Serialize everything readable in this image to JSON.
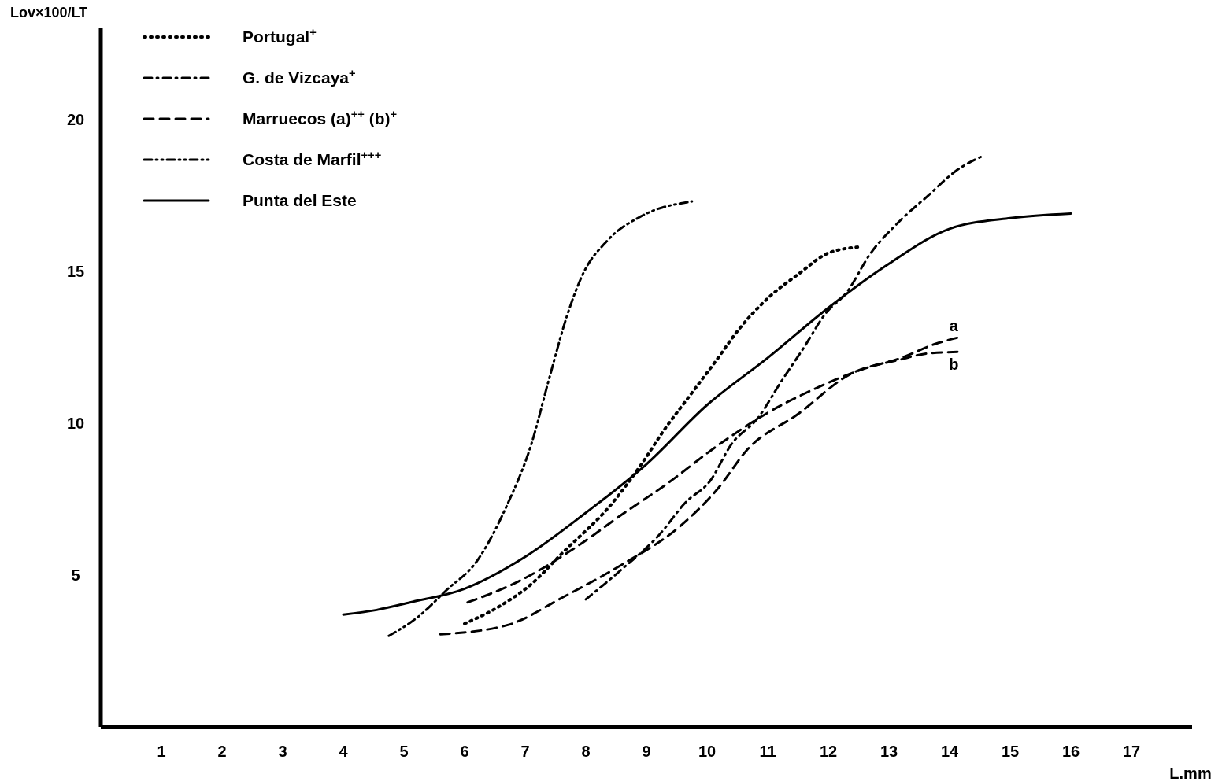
{
  "chart_data": {
    "type": "line",
    "xlabel": "L.mm",
    "ylabel": "Lov×100/LT",
    "xlim": [
      0,
      18
    ],
    "ylim": [
      0,
      23
    ],
    "xticks": [
      1,
      2,
      3,
      4,
      5,
      6,
      7,
      8,
      9,
      10,
      11,
      12,
      13,
      14,
      15,
      16,
      17
    ],
    "yticks": [
      5,
      10,
      15,
      20
    ],
    "grid": false,
    "legend": "top left",
    "marker": "none",
    "series": [
      {
        "name": "Portugal$^{+}$",
        "color": "#000000",
        "line_style": "dotted",
        "x": [
          6.0,
          6.6,
          7.1,
          7.6,
          8.45,
          8.9,
          9.3,
          9.75,
          10.2,
          10.45,
          11.05,
          11.5,
          12.0,
          12.5
        ],
        "values": [
          3.4,
          4.0,
          4.7,
          5.7,
          7.4,
          8.6,
          9.8,
          11.0,
          12.2,
          12.9,
          14.2,
          14.9,
          15.6,
          15.8
        ]
      },
      {
        "name": "G. de Vizcaya$^{+}$",
        "color": "#000000",
        "line_style": "dashdot",
        "x": [
          8.0,
          8.6,
          9.2,
          9.65,
          10.05,
          10.4,
          10.85,
          11.2,
          11.6,
          11.95,
          12.3,
          12.7,
          13.15,
          13.65,
          14.1,
          14.55
        ],
        "values": [
          4.2,
          5.2,
          6.3,
          7.4,
          8.1,
          9.3,
          10.2,
          11.3,
          12.5,
          13.6,
          14.3,
          15.6,
          16.6,
          17.5,
          18.3,
          18.8
        ]
      },
      {
        "name": "Marruecos (a)$^{++}$ (b)$^{+}$",
        "color": "#000000",
        "line_style": "dashed",
        "x": [
          6.05,
          6.9,
          7.9,
          8.6,
          9.3,
          10.2,
          11.05,
          11.85,
          12.6,
          13.2,
          13.75,
          14.2
        ],
        "values": [
          4.1,
          4.8,
          6.0,
          7.0,
          7.95,
          9.3,
          10.4,
          11.2,
          11.8,
          12.15,
          12.6,
          12.85
        ]
      },
      {
        "color": "#000000",
        "line_style": "dashed",
        "x": [
          5.6,
          6.7,
          7.65,
          8.6,
          9.55,
          10.2,
          10.65,
          11.5,
          12.35,
          13.2,
          13.65,
          14.2
        ],
        "values": [
          3.05,
          3.35,
          4.3,
          5.35,
          6.6,
          7.9,
          9.1,
          10.3,
          11.6,
          12.1,
          12.3,
          12.35
        ]
      },
      {
        "name": "Costa de Marfil$^{+++}$",
        "color": "#000000",
        "line_style": "dashdotdot",
        "x": [
          4.75,
          5.25,
          5.7,
          6.2,
          6.7,
          7.1,
          7.4,
          7.7,
          7.95,
          8.35,
          8.9,
          9.75
        ],
        "values": [
          3.0,
          3.65,
          4.5,
          5.45,
          7.3,
          9.3,
          11.5,
          13.6,
          14.9,
          16.0,
          16.8,
          17.3
        ]
      },
      {
        "name": "Punta del Este",
        "color": "#000000",
        "line_style": "solid",
        "x": [
          4.0,
          4.55,
          5.1,
          6.0,
          7.0,
          8.0,
          9.0,
          10.0,
          11.0,
          12.0,
          13.0,
          14.0,
          15.0,
          16.0
        ],
        "values": [
          3.7,
          3.85,
          4.1,
          4.55,
          5.6,
          7.05,
          8.65,
          10.6,
          12.15,
          13.8,
          15.25,
          16.4,
          16.75,
          16.9
        ]
      }
    ],
    "annotations": [
      {
        "text": "a",
        "x": 14.2,
        "y": 12.85
      },
      {
        "text": "b",
        "x": 14.2,
        "y": 12.35
      }
    ]
  }
}
